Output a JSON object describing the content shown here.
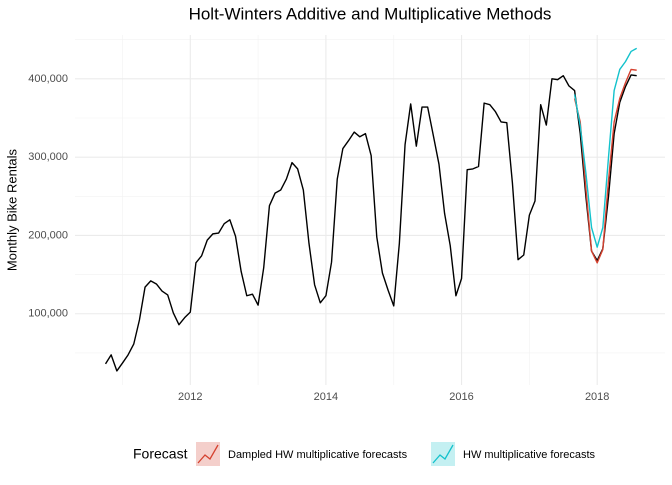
{
  "chart_data": {
    "type": "line",
    "title": "Holt-Winters Additive and Multiplicative Methods",
    "y_label": "Monthly Bike Rentals",
    "legend_title": "Forecast",
    "legend_position": "bottom",
    "grid": true,
    "xlim": [
      2010.3,
      2019.0
    ],
    "ylim": [
      9000,
      456000
    ],
    "xticks": [
      2012,
      2014,
      2016,
      2018
    ],
    "yticks": [
      {
        "value": 100000,
        "label": "100,000"
      },
      {
        "value": 200000,
        "label": "200,000"
      },
      {
        "value": 300000,
        "label": "300,000"
      },
      {
        "value": 400000,
        "label": "400,000"
      }
    ],
    "series": [
      {
        "color": "#000000",
        "x": [
          2010.75,
          2010.833,
          2010.917,
          2011,
          2011.083,
          2011.167,
          2011.25,
          2011.333,
          2011.417,
          2011.5,
          2011.583,
          2011.667,
          2011.75,
          2011.833,
          2011.917,
          2012,
          2012.083,
          2012.167,
          2012.25,
          2012.333,
          2012.417,
          2012.5,
          2012.583,
          2012.667,
          2012.75,
          2012.833,
          2012.917,
          2013,
          2013.083,
          2013.167,
          2013.25,
          2013.333,
          2013.417,
          2013.5,
          2013.583,
          2013.667,
          2013.75,
          2013.833,
          2013.917,
          2014,
          2014.083,
          2014.167,
          2014.25,
          2014.333,
          2014.417,
          2014.5,
          2014.583,
          2014.667,
          2014.75,
          2014.833,
          2014.917,
          2015,
          2015.083,
          2015.167,
          2015.25,
          2015.333,
          2015.417,
          2015.5,
          2015.583,
          2015.667,
          2015.75,
          2015.833,
          2015.917,
          2016,
          2016.083,
          2016.167,
          2016.25,
          2016.333,
          2016.417,
          2016.5,
          2016.583,
          2016.667,
          2016.75,
          2016.833,
          2016.917,
          2017,
          2017.083,
          2017.167,
          2017.25,
          2017.333,
          2017.417,
          2017.5,
          2017.583,
          2017.667,
          2017.75,
          2017.833,
          2017.917,
          2018,
          2018.083,
          2018.167,
          2018.25,
          2018.333,
          2018.417,
          2018.5,
          2018.583
        ],
        "values": [
          36000,
          47500,
          27000,
          37000,
          47500,
          61500,
          92000,
          134000,
          142000,
          138000,
          129000,
          124000,
          101000,
          86000,
          95000,
          102000,
          165000,
          174000,
          194000,
          202000,
          203000,
          215000,
          220000,
          199000,
          154000,
          123000,
          125000,
          111000,
          159000,
          238000,
          254000,
          258000,
          272000,
          293000,
          285000,
          258000,
          190000,
          137000,
          114000,
          123000,
          166000,
          272000,
          311000,
          321000,
          332000,
          326000,
          330000,
          302000,
          198000,
          152000,
          130000,
          110000,
          190000,
          316000,
          368000,
          314000,
          364000,
          364000,
          328000,
          291000,
          228000,
          187000,
          123000,
          145000,
          284000,
          285000,
          288000,
          369000,
          367000,
          358000,
          345000,
          344000,
          267000,
          169000,
          175000,
          226000,
          244000,
          367000,
          341000,
          400000,
          399000,
          404000,
          391000,
          385000,
          330000,
          250000,
          180000,
          168000,
          183000,
          250000,
          330000,
          370000,
          390000,
          405000,
          404000
        ]
      },
      {
        "name": "Dampled HW multiplicative forecasts",
        "color": "#d5412f",
        "x": [
          2017.667,
          2017.75,
          2017.833,
          2017.917,
          2018,
          2018.083,
          2018.167,
          2018.25,
          2018.333,
          2018.417,
          2018.5,
          2018.583
        ],
        "values": [
          375000,
          345000,
          260000,
          180000,
          165000,
          182000,
          270000,
          345000,
          375000,
          395000,
          412000,
          411000
        ]
      },
      {
        "name": "HW multiplicative forecasts",
        "color": "#13c2cc",
        "x": [
          2017.667,
          2017.75,
          2017.833,
          2017.917,
          2018,
          2018.083,
          2018.167,
          2018.25,
          2018.333,
          2018.417,
          2018.5,
          2018.583
        ],
        "values": [
          380000,
          340000,
          280000,
          210000,
          185000,
          210000,
          300000,
          385000,
          412000,
          422000,
          435000,
          439000
        ]
      }
    ]
  }
}
